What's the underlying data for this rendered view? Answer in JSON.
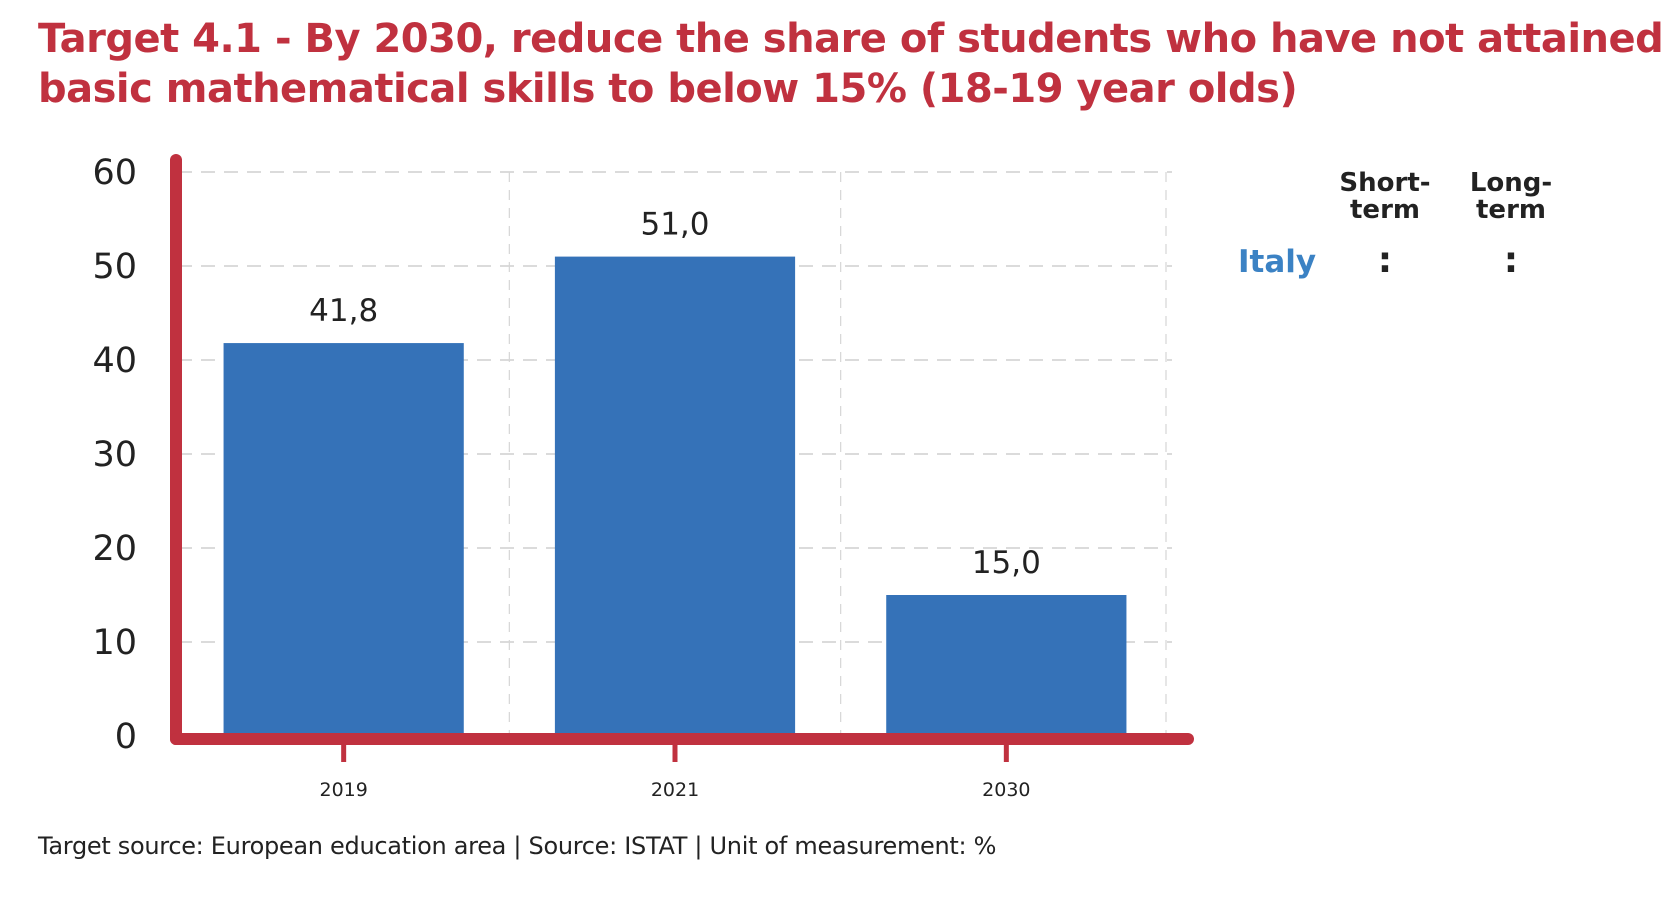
{
  "title": {
    "line1": "Target 4.1 - By 2030, reduce the share of students who have not attained",
    "line2": "basic mathematical skills to below 15% (18-19 year olds)"
  },
  "chart_data": {
    "type": "bar",
    "categories": [
      "2019",
      "2021",
      "2030"
    ],
    "values": [
      41.8,
      51.0,
      15.0
    ],
    "value_labels": [
      "41,8",
      "51,0",
      "15,0"
    ],
    "ylim": [
      0,
      60
    ],
    "yticks": [
      0,
      10,
      20,
      30,
      40,
      50,
      60
    ],
    "grid": true,
    "bar_color": "#3572b8",
    "axis_color": "#c0313f"
  },
  "side_panel": {
    "short_term_label": "Short-\nterm",
    "long_term_label": "Long-\nterm",
    "country": "Italy",
    "short_term_value": ":",
    "long_term_value": ":"
  },
  "footer": "Target source: European education area | Source: ISTAT | Unit of measurement: %"
}
